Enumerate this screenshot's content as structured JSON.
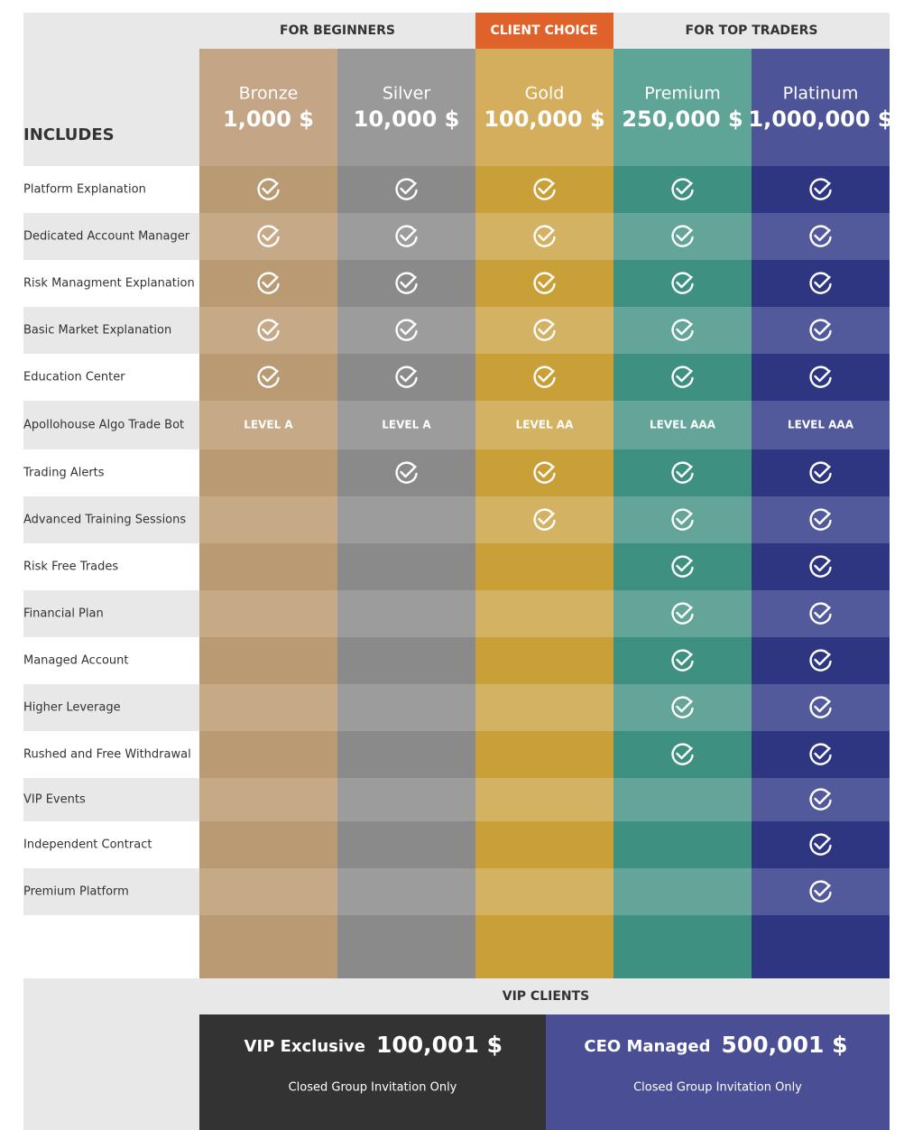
{
  "header": {
    "groups": [
      "FOR BEGINNERS",
      "CLIENT CHOICE",
      "FOR TOP TRADERS"
    ],
    "includes": "INCLUDES"
  },
  "plans": [
    {
      "name": "Bronze",
      "price": "1,000 $"
    },
    {
      "name": "Silver",
      "price": "10,000 $"
    },
    {
      "name": "Gold",
      "price": "100,000 $"
    },
    {
      "name": "Premium",
      "price": "250,000 $"
    },
    {
      "name": "Platinum",
      "price": "1,000,000 $"
    }
  ],
  "rows": [
    {
      "label": "Platform Explanation",
      "cells": [
        true,
        true,
        true,
        true,
        true
      ]
    },
    {
      "label": "Dedicated Account Manager",
      "cells": [
        true,
        true,
        true,
        true,
        true
      ]
    },
    {
      "label": "Risk Managment Explanation",
      "cells": [
        true,
        true,
        true,
        true,
        true
      ]
    },
    {
      "label": "Basic Market Explanation",
      "cells": [
        true,
        true,
        true,
        true,
        true
      ]
    },
    {
      "label": "Education Center",
      "cells": [
        true,
        true,
        true,
        true,
        true
      ]
    },
    {
      "label": "Apollohouse Algo Trade Bot",
      "cells": [
        "LEVEL A",
        "LEVEL A",
        "LEVEL AA",
        "LEVEL AAA",
        "LEVEL AAA"
      ]
    },
    {
      "label": "Trading Alerts",
      "cells": [
        false,
        true,
        true,
        true,
        true
      ]
    },
    {
      "label": "Advanced Training Sessions",
      "cells": [
        false,
        false,
        true,
        true,
        true
      ]
    },
    {
      "label": "Risk Free Trades",
      "cells": [
        false,
        false,
        false,
        true,
        true
      ]
    },
    {
      "label": "Financial Plan",
      "cells": [
        false,
        false,
        false,
        true,
        true
      ]
    },
    {
      "label": "Managed Account",
      "cells": [
        false,
        false,
        false,
        true,
        true
      ]
    },
    {
      "label": "Higher Leverage",
      "cells": [
        false,
        false,
        false,
        true,
        true
      ]
    },
    {
      "label": "Rushed and Free Withdrawal",
      "cells": [
        false,
        false,
        false,
        true,
        true
      ]
    },
    {
      "label": "VIP Events",
      "cells": [
        false,
        false,
        false,
        false,
        true
      ]
    },
    {
      "label": "Independent Contract",
      "cells": [
        false,
        false,
        false,
        false,
        true
      ]
    },
    {
      "label": "Premium Platform",
      "cells": [
        false,
        false,
        false,
        false,
        true
      ]
    }
  ],
  "vip": {
    "title": "VIP CLIENTS",
    "cards": [
      {
        "name": "VIP Exclusive",
        "price": "100,001 $",
        "note": "Closed Group Invitation Only"
      },
      {
        "name": "CEO Managed",
        "price": "500,001 $",
        "note": "Closed Group Invitation Only"
      }
    ]
  }
}
